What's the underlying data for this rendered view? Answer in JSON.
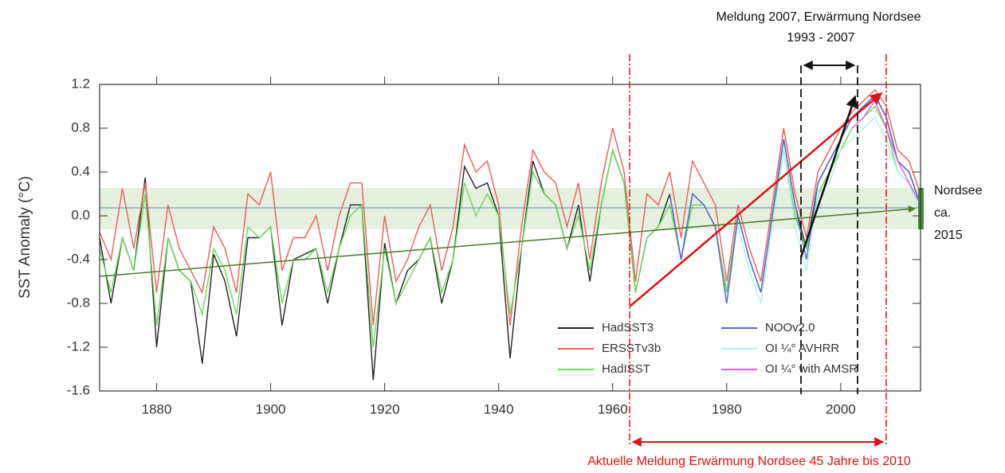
{
  "chart_data": {
    "type": "line",
    "y_label": "SST Anomaly (°C)",
    "x": [
      1870,
      1872,
      1874,
      1876,
      1878,
      1880,
      1882,
      1884,
      1886,
      1888,
      1890,
      1892,
      1894,
      1896,
      1898,
      1900,
      1902,
      1904,
      1906,
      1908,
      1910,
      1912,
      1914,
      1916,
      1918,
      1920,
      1922,
      1924,
      1926,
      1928,
      1930,
      1932,
      1934,
      1936,
      1938,
      1940,
      1942,
      1944,
      1946,
      1948,
      1950,
      1952,
      1954,
      1956,
      1958,
      1960,
      1962,
      1964,
      1966,
      1968,
      1970,
      1972,
      1974,
      1976,
      1978,
      1980,
      1982,
      1984,
      1986,
      1988,
      1990,
      1992,
      1994,
      1996,
      1998,
      2000,
      2002,
      2004,
      2006,
      2008,
      2010,
      2012,
      2014
    ],
    "xlim": [
      1870,
      2014
    ],
    "xticks": [
      1880,
      1900,
      1920,
      1940,
      1960,
      1980,
      2000
    ],
    "ylim": [
      -1.6,
      1.2
    ],
    "yticks": [
      1.2,
      0.8,
      0.4,
      {
        "value": 0,
        "label": "0.0"
      },
      -0.4,
      -0.8,
      -1.2,
      -1.6
    ],
    "series": [
      {
        "name": "HadSST3",
        "color": "#222222",
        "values": [
          -0.2,
          -0.8,
          -0.2,
          -0.5,
          0.35,
          -1.2,
          -0.2,
          -0.5,
          -0.6,
          -1.35,
          -0.35,
          -0.6,
          -1.1,
          -0.2,
          -0.2,
          -0.1,
          -1.0,
          -0.4,
          -0.35,
          -0.3,
          -0.8,
          -0.3,
          0.1,
          0.1,
          -1.5,
          -0.25,
          -0.8,
          -0.5,
          -0.4,
          -0.2,
          -0.8,
          -0.4,
          0.45,
          0.25,
          0.3,
          0.0,
          -1.3,
          -0.3,
          0.5,
          0.2,
          0.1,
          -0.3,
          0.1,
          -0.6,
          0.1,
          0.6,
          0.3,
          -0.7,
          -0.2,
          -0.1,
          0.2,
          -0.4,
          0.2,
          0.1,
          -0.1,
          -0.7,
          0.0,
          -0.4,
          -0.7,
          0.0,
          0.7,
          0.1,
          -0.3,
          0.3,
          0.5,
          0.7,
          0.9,
          1.0,
          1.1,
          0.9,
          0.5,
          0.4,
          0.1
        ]
      },
      {
        "name": "ERSSTv3b",
        "color": "#f05a5a",
        "values": [
          -0.15,
          -0.4,
          0.25,
          -0.3,
          0.3,
          -0.7,
          0.1,
          -0.3,
          -0.5,
          -0.7,
          -0.1,
          -0.3,
          -0.7,
          0.2,
          0.1,
          0.4,
          -0.5,
          -0.2,
          -0.2,
          0.0,
          -0.5,
          0.0,
          0.3,
          0.3,
          -1.0,
          0.0,
          -0.6,
          -0.4,
          -0.1,
          0.1,
          -0.5,
          -0.1,
          0.65,
          0.4,
          0.5,
          0.1,
          -1.0,
          -0.1,
          0.6,
          0.4,
          0.3,
          -0.1,
          0.3,
          -0.4,
          0.3,
          0.8,
          0.4,
          -0.6,
          0.2,
          0.1,
          0.4,
          -0.2,
          0.5,
          0.3,
          0.1,
          -0.6,
          0.1,
          -0.3,
          -0.6,
          0.1,
          0.8,
          0.2,
          -0.2,
          0.4,
          0.6,
          0.8,
          0.95,
          1.05,
          1.15,
          1.0,
          0.6,
          0.5,
          0.2
        ]
      },
      {
        "name": "HadISST",
        "color": "#66dd55",
        "values": [
          -0.3,
          -0.7,
          -0.2,
          -0.5,
          0.2,
          -1.0,
          -0.2,
          -0.5,
          -0.6,
          -0.9,
          -0.3,
          -0.5,
          -0.9,
          -0.1,
          -0.2,
          -0.1,
          -0.8,
          -0.4,
          -0.4,
          -0.3,
          -0.7,
          -0.3,
          0.0,
          0.1,
          -1.2,
          -0.3,
          -0.8,
          -0.6,
          -0.4,
          -0.2,
          -0.7,
          -0.4,
          0.3,
          0.0,
          0.2,
          0.0,
          -0.9,
          -0.3,
          0.4,
          0.2,
          0.1,
          -0.3,
          0.0,
          -0.5,
          0.1,
          0.6,
          0.3,
          -0.7,
          -0.2,
          -0.1,
          0.1,
          -0.4,
          0.1,
          0.1,
          -0.1,
          -0.7,
          0.0,
          -0.4,
          -0.7,
          0.0,
          0.6,
          0.0,
          -0.3,
          0.2,
          0.4,
          0.6,
          0.8,
          0.9,
          1.0,
          0.8,
          0.4,
          0.3,
          0.1
        ]
      },
      {
        "name": "NOOv2.0",
        "color": "#5566dd",
        "x": [
          1970,
          1972,
          1974,
          1976,
          1978,
          1980,
          1982,
          1984,
          1986,
          1988,
          1990,
          1992,
          1994,
          1996,
          1998,
          2000,
          2002,
          2004,
          2006,
          2008,
          2010,
          2012,
          2014
        ],
        "values": [
          0.2,
          -0.4,
          0.2,
          0.1,
          -0.1,
          -0.8,
          0.0,
          -0.4,
          -0.7,
          0.0,
          0.7,
          0.1,
          -0.4,
          0.3,
          0.5,
          0.7,
          0.9,
          1.0,
          1.1,
          0.9,
          0.5,
          0.4,
          0.1
        ]
      },
      {
        "name": "OI ¼° AVHRR",
        "color": "#aaf2f2",
        "x": [
          1982,
          1984,
          1986,
          1988,
          1990,
          1992,
          1994,
          1996,
          1998,
          2000,
          2002,
          2004,
          2006,
          2008,
          2010,
          2012,
          2014
        ],
        "values": [
          -0.1,
          -0.5,
          -0.8,
          -0.1,
          0.6,
          -0.1,
          -0.5,
          0.2,
          0.3,
          0.6,
          0.7,
          0.8,
          0.9,
          0.7,
          0.4,
          0.3,
          0.0
        ]
      },
      {
        "name": "OI ¼° with AMSR",
        "color": "#e060e0",
        "x": [
          2002,
          2004,
          2006,
          2008,
          2010,
          2012,
          2014
        ],
        "values": [
          0.8,
          0.9,
          1.05,
          0.8,
          0.5,
          0.3,
          0.1
        ]
      }
    ],
    "annotations": [
      "Meldung 2007, Erwärmung Nordsee",
      "1993 - 2007",
      "Aktuelle Meldung Erwärmung Nordsee 45 Jahre bis 2010",
      "Nordsee",
      "ca.",
      "2015"
    ]
  }
}
